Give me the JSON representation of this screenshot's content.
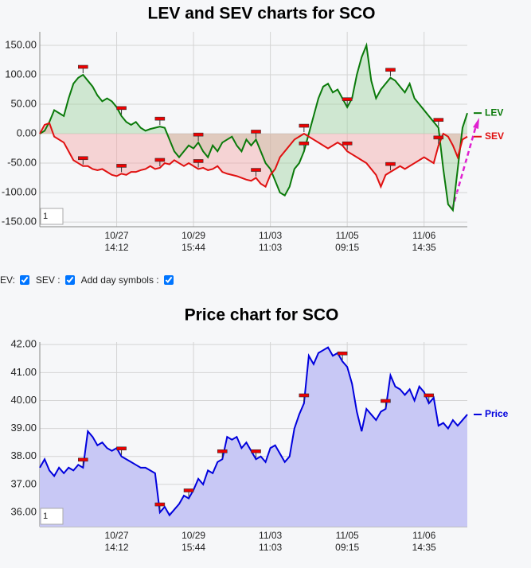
{
  "chart_data": [
    {
      "type": "line",
      "title": "LEV and SEV charts for SCO",
      "zoom_value": "1",
      "grid": true,
      "fill": "zero",
      "xlim": [
        0,
        89
      ],
      "xticks": [
        {
          "value": 16,
          "label": "10/27 14:12"
        },
        {
          "value": 32,
          "label": "10/29 15:44"
        },
        {
          "value": 48,
          "label": "11/03 11:03"
        },
        {
          "value": 64,
          "label": "11/05 09:15"
        },
        {
          "value": 80,
          "label": "11/06 14:35"
        }
      ],
      "ylim": [
        -158,
        173
      ],
      "yticks": [
        {
          "value": 150,
          "label": "150.00"
        },
        {
          "value": 100,
          "label": "100.00"
        },
        {
          "value": 50,
          "label": "50.00"
        },
        {
          "value": 0,
          "label": "0.00"
        },
        {
          "value": -50,
          "label": "-50.00"
        },
        {
          "value": -100,
          "label": "-100.00"
        },
        {
          "value": -150,
          "label": "-150.00"
        }
      ],
      "series": [
        {
          "name": "LEV",
          "color": "#0a7a0a",
          "fill_color": "#9fd39f",
          "values": [
            0,
            5,
            20,
            40,
            35,
            30,
            60,
            85,
            95,
            100,
            90,
            80,
            65,
            55,
            60,
            55,
            45,
            30,
            20,
            15,
            20,
            10,
            5,
            8,
            10,
            12,
            10,
            -10,
            -30,
            -40,
            -30,
            -20,
            -25,
            -15,
            -30,
            -40,
            -20,
            -30,
            -15,
            -10,
            -5,
            -20,
            -30,
            -10,
            -20,
            -10,
            -30,
            -50,
            -60,
            -80,
            -100,
            -105,
            -90,
            -60,
            -50,
            -30,
            0,
            30,
            60,
            80,
            85,
            70,
            75,
            60,
            45,
            60,
            100,
            130,
            150,
            90,
            60,
            75,
            85,
            95,
            90,
            80,
            70,
            85,
            60,
            50,
            40,
            30,
            20,
            10,
            -60,
            -120,
            -130,
            -60,
            10,
            35
          ],
          "markers": [
            9,
            17,
            25,
            33,
            45,
            55,
            64,
            73,
            83
          ]
        },
        {
          "name": "SEV",
          "color": "#e01010",
          "fill_color": "#f4a6a6",
          "values": [
            0,
            15,
            18,
            -5,
            -10,
            -15,
            -30,
            -45,
            -50,
            -55,
            -55,
            -60,
            -62,
            -60,
            -65,
            -70,
            -72,
            -68,
            -70,
            -65,
            -65,
            -62,
            -60,
            -55,
            -60,
            -58,
            -50,
            -52,
            -45,
            -50,
            -55,
            -50,
            -55,
            -60,
            -58,
            -62,
            -60,
            -55,
            -65,
            -68,
            -70,
            -72,
            -75,
            -78,
            -80,
            -75,
            -85,
            -90,
            -70,
            -60,
            -40,
            -30,
            -20,
            -10,
            -5,
            0,
            -5,
            -10,
            -15,
            -20,
            -25,
            -20,
            -15,
            -20,
            -30,
            -35,
            -40,
            -45,
            -50,
            -60,
            -70,
            -90,
            -70,
            -65,
            -60,
            -55,
            -60,
            -55,
            -50,
            -45,
            -40,
            -45,
            -50,
            -20,
            0,
            -5,
            -20,
            -40,
            -10,
            -5
          ],
          "markers": [
            9,
            17,
            25,
            33,
            45,
            55,
            64,
            73,
            83
          ]
        }
      ]
    },
    {
      "type": "line",
      "title": "Price chart for SCO",
      "zoom_value": "1",
      "grid": true,
      "fill": "bottom",
      "xlim": [
        0,
        89
      ],
      "xticks": [
        {
          "value": 16,
          "label": "10/27 14:12"
        },
        {
          "value": 32,
          "label": "10/29 15:44"
        },
        {
          "value": 48,
          "label": "11/03 11:03"
        },
        {
          "value": 64,
          "label": "11/05 09:15"
        },
        {
          "value": 80,
          "label": "11/06 14:35"
        }
      ],
      "ylim": [
        35.49,
        42.09
      ],
      "yticks": [
        {
          "value": 42,
          "label": "42.00"
        },
        {
          "value": 41,
          "label": "41.00"
        },
        {
          "value": 40,
          "label": "40.00"
        },
        {
          "value": 39,
          "label": "39.00"
        },
        {
          "value": 38,
          "label": "38.00"
        },
        {
          "value": 37,
          "label": "37.00"
        },
        {
          "value": 36,
          "label": "36.00"
        }
      ],
      "series": [
        {
          "name": "Price",
          "color": "#0000dd",
          "fill_color": "#c8c8f5",
          "values": [
            37.6,
            37.9,
            37.5,
            37.3,
            37.6,
            37.4,
            37.6,
            37.5,
            37.7,
            37.6,
            38.9,
            38.7,
            38.4,
            38.5,
            38.3,
            38.2,
            38.3,
            38.0,
            37.9,
            37.8,
            37.7,
            37.6,
            37.6,
            37.5,
            37.4,
            36.0,
            36.2,
            35.9,
            36.1,
            36.3,
            36.6,
            36.5,
            36.8,
            37.2,
            37.0,
            37.5,
            37.4,
            37.8,
            37.9,
            38.7,
            38.6,
            38.7,
            38.3,
            38.5,
            38.2,
            37.9,
            38.0,
            37.8,
            38.3,
            38.4,
            38.1,
            37.8,
            38.0,
            39.0,
            39.5,
            39.9,
            41.6,
            41.3,
            41.7,
            41.8,
            41.9,
            41.6,
            41.7,
            41.4,
            41.2,
            40.6,
            39.6,
            38.9,
            39.7,
            39.5,
            39.3,
            39.6,
            39.7,
            40.9,
            40.5,
            40.4,
            40.2,
            40.4,
            40.0,
            40.5,
            40.3,
            39.9,
            40.1,
            39.1,
            39.2,
            39.0,
            39.3,
            39.1,
            39.3,
            39.5
          ],
          "markers": [
            9,
            17,
            25,
            31,
            38,
            45,
            55,
            63,
            72,
            81
          ]
        }
      ]
    }
  ],
  "controls": [
    {
      "label": "EV:",
      "checked": true
    },
    {
      "label": "SEV :",
      "checked": true
    },
    {
      "label": "Add day symbols :",
      "checked": true
    }
  ]
}
